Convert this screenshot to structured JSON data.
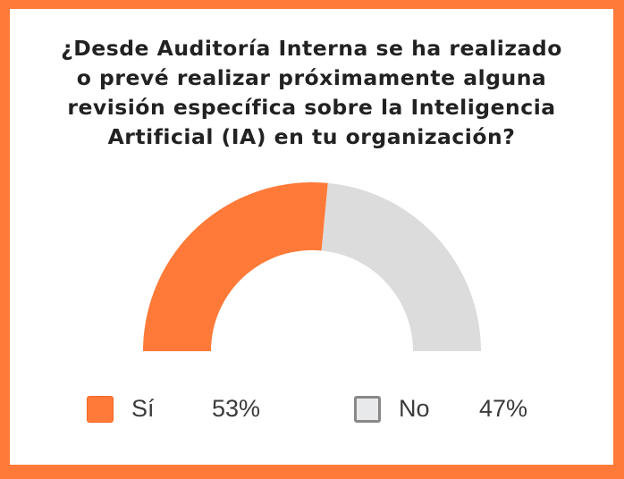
{
  "chart_data": {
    "type": "pie",
    "variant": "half-donut",
    "title": "¿Desde Auditoría Interna se ha realizado o prevé realizar próximamente alguna revisión específica sobre la Inteligencia Artificial (IA) en tu organización?",
    "title_lines": [
      "¿Desde Auditoría Interna se ha realizado",
      "o prevé realizar próximamente alguna",
      "revisión específica sobre la Inteligencia",
      "Artificial (IA) en tu organización?"
    ],
    "categories": [
      "Sí",
      "No"
    ],
    "values": [
      53,
      47
    ],
    "value_labels": [
      "53%",
      "47%"
    ],
    "colors": [
      "#FF7A38",
      "#DCDCDC"
    ],
    "legend_position": "bottom"
  },
  "frame_color": "#FF7A38"
}
